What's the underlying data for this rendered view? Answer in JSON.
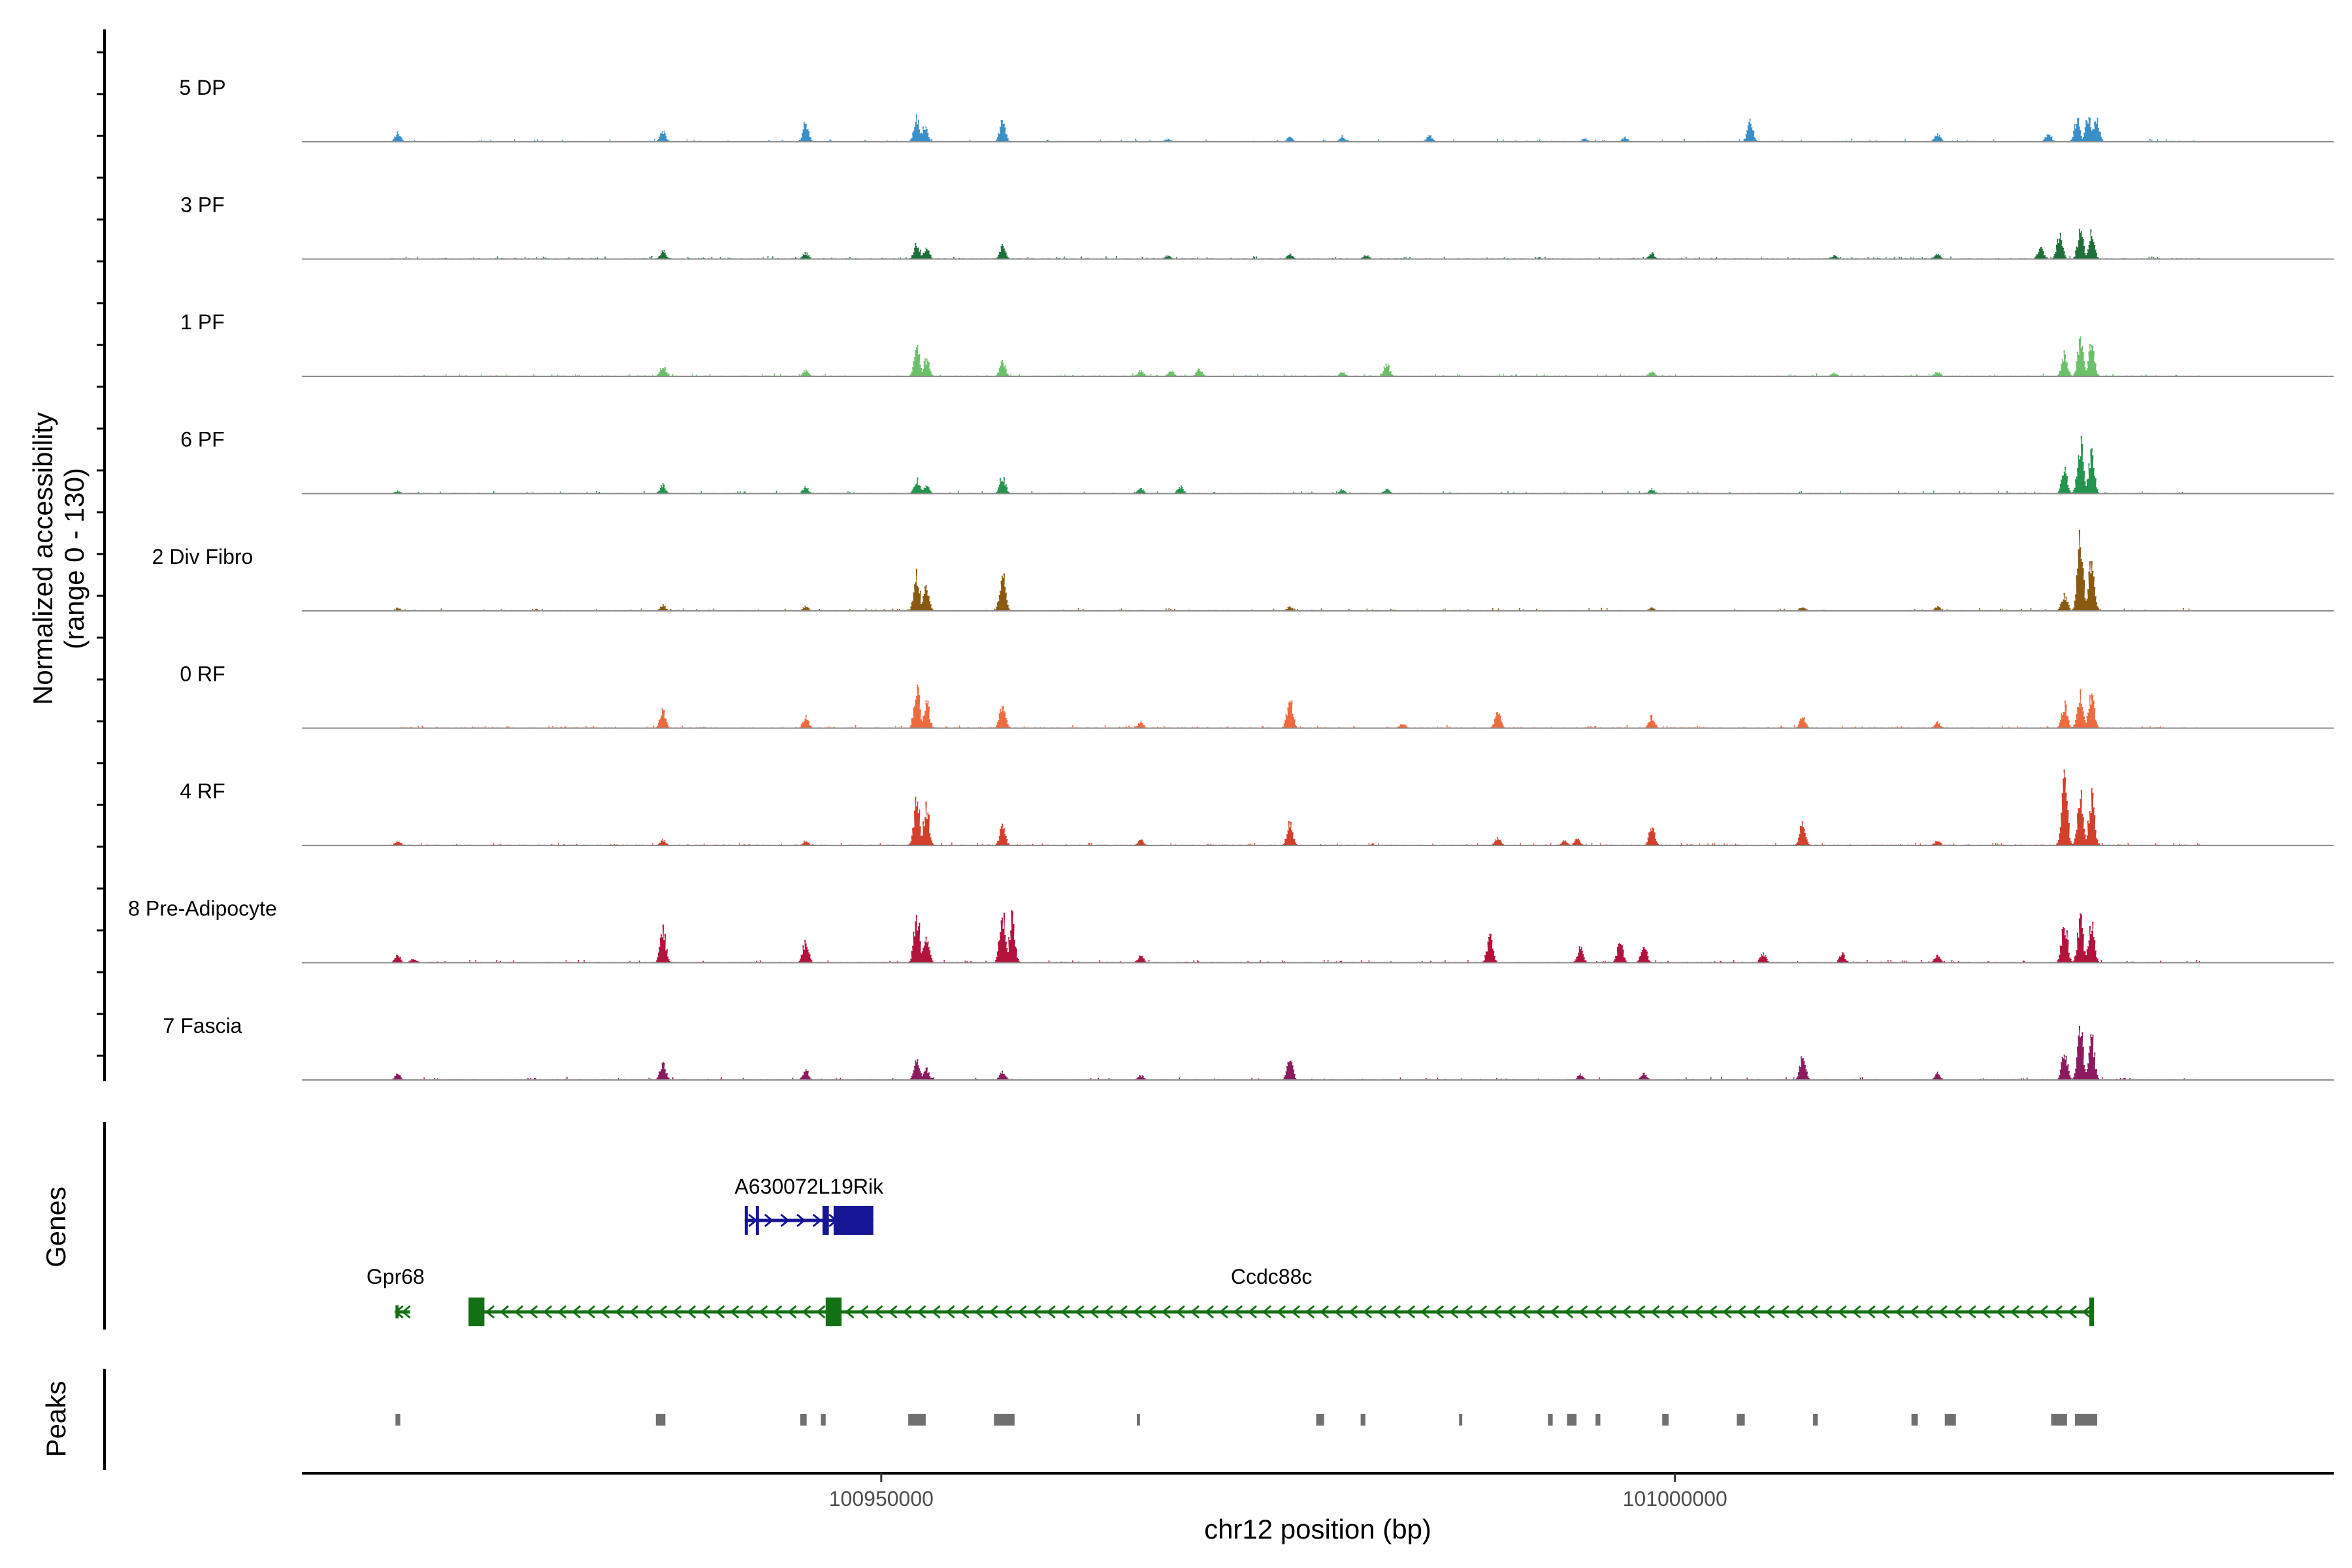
{
  "chart_data": {
    "type": "coverage-track",
    "ylabel_line1": "Normalized accessibility",
    "ylabel_line2": "(range 0 - 130)",
    "ylim": [
      0,
      130
    ],
    "xlabel": "chr12 position (bp)",
    "xlim": [
      100913500,
      101041500
    ],
    "x_ticks": [
      {
        "value": 100950000,
        "label": "100950000"
      },
      {
        "value": 101000000,
        "label": "101000000"
      }
    ],
    "tracks": [
      {
        "name": "5 DP",
        "color": "#3a8fc9",
        "peaks": [
          [
            100919500,
            15
          ],
          [
            100936200,
            18
          ],
          [
            100945200,
            33
          ],
          [
            100952200,
            40
          ],
          [
            100952700,
            30
          ],
          [
            100957600,
            35
          ],
          [
            100968000,
            5
          ],
          [
            100975700,
            8
          ],
          [
            100979000,
            10
          ],
          [
            100984500,
            10
          ],
          [
            100994300,
            6
          ],
          [
            100996800,
            8
          ],
          [
            101004700,
            35
          ],
          [
            101016500,
            14
          ],
          [
            101023500,
            14
          ],
          [
            101025300,
            38
          ],
          [
            101026000,
            42
          ],
          [
            101026500,
            40
          ]
        ]
      },
      {
        "name": "3 PF",
        "color": "#1e6f3a",
        "peaks": [
          [
            100936200,
            14
          ],
          [
            100945200,
            11
          ],
          [
            100952200,
            28
          ],
          [
            100952800,
            20
          ],
          [
            100957600,
            22
          ],
          [
            100968000,
            6
          ],
          [
            100975700,
            8
          ],
          [
            100980500,
            7
          ],
          [
            100998500,
            10
          ],
          [
            101010000,
            6
          ],
          [
            101016500,
            8
          ],
          [
            101023000,
            20
          ],
          [
            101024200,
            38
          ],
          [
            101025500,
            48
          ],
          [
            101026200,
            44
          ]
        ]
      },
      {
        "name": "1 PF",
        "color": "#6cc06a",
        "peaks": [
          [
            100936200,
            18
          ],
          [
            100945200,
            10
          ],
          [
            100952200,
            48
          ],
          [
            100952800,
            30
          ],
          [
            100957600,
            25
          ],
          [
            100966300,
            10
          ],
          [
            100968200,
            10
          ],
          [
            100970000,
            12
          ],
          [
            100979000,
            8
          ],
          [
            100981800,
            22
          ],
          [
            100998500,
            8
          ],
          [
            101010000,
            6
          ],
          [
            101016500,
            8
          ],
          [
            101024500,
            38
          ],
          [
            101025500,
            58
          ],
          [
            101026200,
            55
          ]
        ]
      },
      {
        "name": "6 PF",
        "color": "#25944e",
        "peaks": [
          [
            100919500,
            5
          ],
          [
            100936200,
            15
          ],
          [
            100945200,
            12
          ],
          [
            100952200,
            25
          ],
          [
            100952800,
            15
          ],
          [
            100957600,
            30
          ],
          [
            100966300,
            10
          ],
          [
            100968800,
            12
          ],
          [
            100979000,
            7
          ],
          [
            100981800,
            8
          ],
          [
            100998500,
            8
          ],
          [
            101024500,
            40
          ],
          [
            101025500,
            88
          ],
          [
            101026200,
            70
          ]
        ]
      },
      {
        "name": "2 Div Fibro",
        "color": "#8a5a10",
        "peaks": [
          [
            100919500,
            5
          ],
          [
            100936200,
            10
          ],
          [
            100945200,
            8
          ],
          [
            100952200,
            60
          ],
          [
            100952800,
            40
          ],
          [
            100957600,
            62
          ],
          [
            100975700,
            7
          ],
          [
            100998500,
            6
          ],
          [
            101008000,
            7
          ],
          [
            101016500,
            7
          ],
          [
            101024500,
            28
          ],
          [
            101025500,
            125
          ],
          [
            101026200,
            95
          ]
        ]
      },
      {
        "name": "0 RF",
        "color": "#ee6a3f",
        "peaks": [
          [
            100936200,
            30
          ],
          [
            100945200,
            20
          ],
          [
            100952200,
            72
          ],
          [
            100952800,
            45
          ],
          [
            100957600,
            42
          ],
          [
            100966300,
            10
          ],
          [
            100975700,
            50
          ],
          [
            100982800,
            8
          ],
          [
            100988800,
            28
          ],
          [
            100998500,
            20
          ],
          [
            101008000,
            20
          ],
          [
            101016500,
            10
          ],
          [
            101024500,
            40
          ],
          [
            101025500,
            65
          ],
          [
            101026200,
            58
          ]
        ]
      },
      {
        "name": "4 RF",
        "color": "#d23f2a",
        "peaks": [
          [
            100919500,
            8
          ],
          [
            100936200,
            10
          ],
          [
            100945200,
            8
          ],
          [
            100952200,
            76
          ],
          [
            100952800,
            65
          ],
          [
            100957600,
            32
          ],
          [
            100966300,
            10
          ],
          [
            100975700,
            38
          ],
          [
            100988800,
            12
          ],
          [
            100993000,
            8
          ],
          [
            100993800,
            12
          ],
          [
            100998500,
            30
          ],
          [
            101008000,
            38
          ],
          [
            101016500,
            8
          ],
          [
            101024500,
            110
          ],
          [
            101025500,
            85
          ],
          [
            101026200,
            82
          ]
        ]
      },
      {
        "name": "8 Pre-Adipocyte",
        "color": "#b3123c",
        "peaks": [
          [
            100919500,
            12
          ],
          [
            100920500,
            8
          ],
          [
            100936200,
            58
          ],
          [
            100945200,
            38
          ],
          [
            100952200,
            84
          ],
          [
            100952800,
            50
          ],
          [
            100957600,
            85
          ],
          [
            100958200,
            75
          ],
          [
            100966300,
            12
          ],
          [
            100988300,
            45
          ],
          [
            100994000,
            25
          ],
          [
            100996500,
            35
          ],
          [
            100998000,
            30
          ],
          [
            101005500,
            15
          ],
          [
            101010500,
            15
          ],
          [
            101016500,
            12
          ],
          [
            101024500,
            70
          ],
          [
            101025500,
            72
          ],
          [
            101026200,
            65
          ]
        ]
      },
      {
        "name": "7 Fascia",
        "color": "#8c1a5e",
        "peaks": [
          [
            100919500,
            10
          ],
          [
            100936200,
            28
          ],
          [
            100945200,
            18
          ],
          [
            100952200,
            35
          ],
          [
            100952800,
            20
          ],
          [
            100957600,
            15
          ],
          [
            100966300,
            8
          ],
          [
            100975700,
            38
          ],
          [
            100994000,
            10
          ],
          [
            100998000,
            12
          ],
          [
            101008000,
            40
          ],
          [
            101016500,
            12
          ],
          [
            101024500,
            50
          ],
          [
            101025500,
            90
          ],
          [
            101026200,
            75
          ]
        ]
      }
    ],
    "genes_title": "Genes",
    "genes": [
      {
        "name": "A630072L19Rik",
        "color": "#151595",
        "strand": "+",
        "start": 100941400,
        "end": 100949500,
        "exons": [
          [
            100941400,
            100941600
          ],
          [
            100942100,
            100942300
          ],
          [
            100946300,
            100946700
          ],
          [
            100947000,
            100949500
          ]
        ]
      },
      {
        "name": "Gpr68",
        "color": "#147014",
        "strand": "-",
        "start": 100919400,
        "end": 100920300,
        "exons": [
          [
            100919400,
            100919600
          ]
        ]
      },
      {
        "name": "Ccdc88c",
        "color": "#147014",
        "strand": "-",
        "start": 100924000,
        "end": 101026400,
        "exons": [
          [
            100924000,
            100925000
          ],
          [
            100946500,
            100947500
          ],
          [
            101026100,
            101026400
          ]
        ]
      }
    ],
    "peaks_title": "Peaks",
    "peak_regions": [
      [
        100919400,
        100919700
      ],
      [
        100935800,
        100936400
      ],
      [
        100944900,
        100945300
      ],
      [
        100946200,
        100946500
      ],
      [
        100951700,
        100952800
      ],
      [
        100957100,
        100958400
      ],
      [
        100966100,
        100966300
      ],
      [
        100977400,
        100977900
      ],
      [
        100980200,
        100980500
      ],
      [
        100986400,
        100986600
      ],
      [
        100992000,
        100992300
      ],
      [
        100993200,
        100993800
      ],
      [
        100995000,
        100995300
      ],
      [
        100999200,
        100999600
      ],
      [
        101003900,
        101004400
      ],
      [
        101008700,
        101009000
      ],
      [
        101014900,
        101015300
      ],
      [
        101017000,
        101017700
      ],
      [
        101023700,
        101024700
      ],
      [
        101025200,
        101026600
      ]
    ]
  },
  "colors": {
    "baseline": "#8c8c8c",
    "peak_block": "#707070",
    "axis": "#000000"
  }
}
